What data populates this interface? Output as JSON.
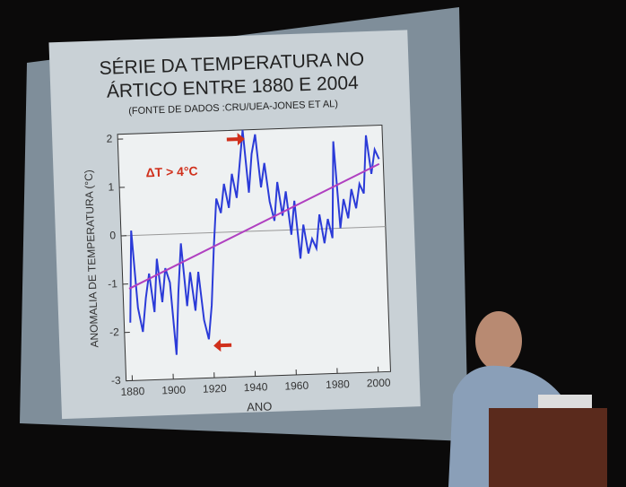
{
  "chart_data": {
    "type": "line",
    "title": "SÉRIE DA TEMPERATURA NO",
    "title_line2": "ÁRTICO ENTRE 1880 E 2004",
    "subtitle": "(FONTE DE DADOS :CRU/UEA-JONES ET AL)",
    "x_label": "ANO",
    "y_label": "ANOMALIA DE TEMPERATURA (°C)",
    "annotation": "ΔT > 4°C",
    "x": [
      1880,
      1882,
      1884,
      1886,
      1888,
      1890,
      1892,
      1894,
      1896,
      1898,
      1900,
      1902,
      1904,
      1906,
      1908,
      1910,
      1912,
      1914,
      1916,
      1918,
      1920,
      1922,
      1924,
      1926,
      1928,
      1930,
      1932,
      1934,
      1936,
      1938,
      1940,
      1942,
      1944,
      1946,
      1948,
      1950,
      1952,
      1954,
      1956,
      1958,
      1960,
      1962,
      1964,
      1966,
      1968,
      1970,
      1972,
      1974,
      1976,
      1978,
      1980,
      1982,
      1984,
      1986,
      1988,
      1990,
      1992,
      1994,
      1996,
      1998,
      2000,
      2002,
      2004
    ],
    "series": [
      {
        "color": "#2b3bd8",
        "values": [
          -1.8,
          0.1,
          -1.5,
          -2.0,
          -1.3,
          -0.8,
          -1.6,
          -0.5,
          -1.4,
          -0.7,
          -1.0,
          -2.5,
          -1.2,
          -0.2,
          -1.5,
          -0.8,
          -1.6,
          -0.8,
          -1.8,
          -2.2,
          -1.5,
          -0.3,
          0.7,
          0.4,
          1.0,
          0.5,
          1.2,
          0.7,
          1.4,
          2.1,
          0.8,
          1.6,
          2.0,
          0.9,
          1.4,
          0.6,
          0.2,
          1.0,
          0.3,
          0.8,
          -0.1,
          0.6,
          -0.6,
          0.1,
          -0.5,
          -0.2,
          -0.4,
          0.3,
          -0.3,
          0.2,
          -0.2,
          1.8,
          0.0,
          0.6,
          0.2,
          0.8,
          0.4,
          0.9,
          0.7,
          1.9,
          1.1,
          1.6,
          1.4
        ]
      }
    ],
    "trend_line": {
      "x": [
        1880,
        2004
      ],
      "values": [
        -1.1,
        1.3
      ],
      "color": "#b040c0"
    },
    "xlim": [
      1877,
      2006
    ],
    "ylim": [
      -3,
      2.1
    ],
    "xticks": [
      1880,
      1900,
      1920,
      1940,
      1960,
      1980,
      2000
    ],
    "yticks": [
      -3,
      -2,
      -1,
      0,
      1,
      2
    ],
    "zero_line": true
  }
}
